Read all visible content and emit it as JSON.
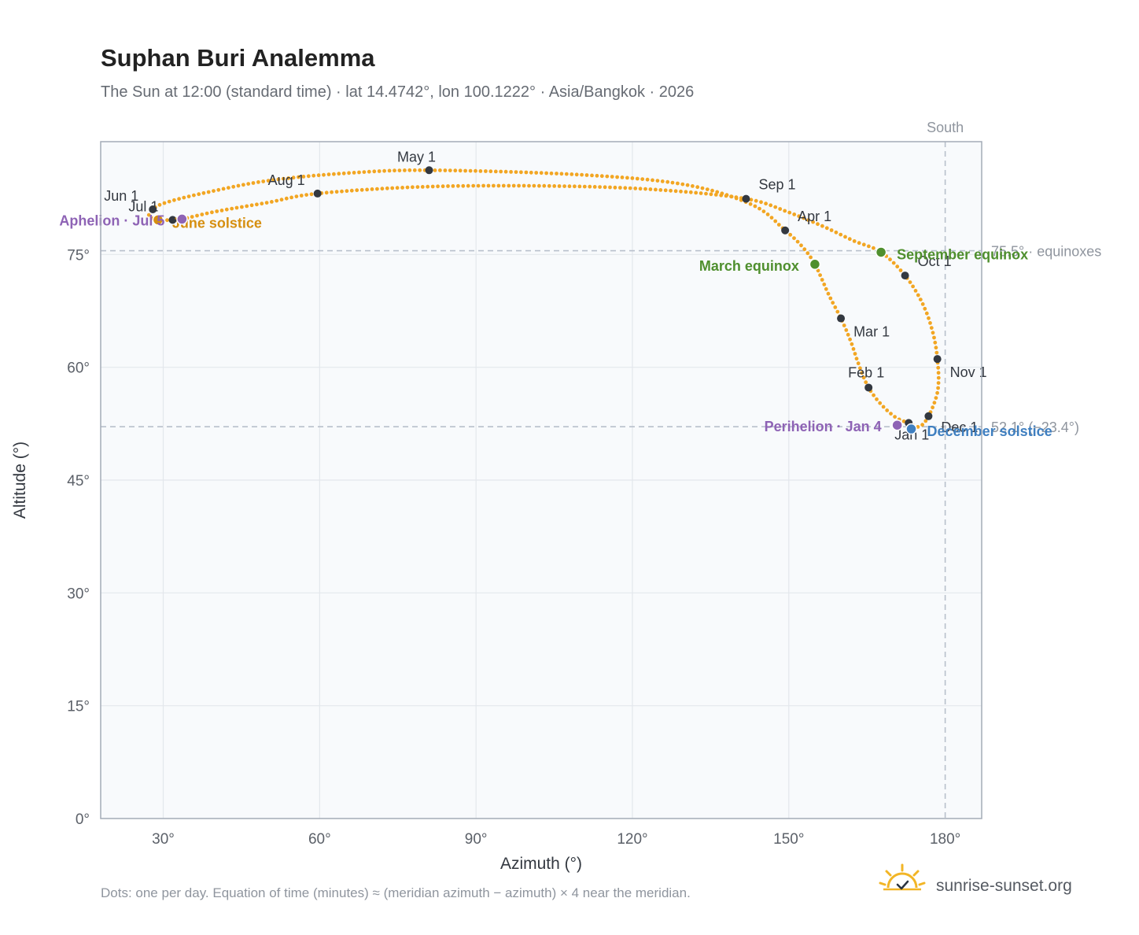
{
  "title": "Suphan Buri Analemma",
  "subtitle": "The Sun at 12:00 (standard time) · lat 14.4742°, lon 100.1222° · Asia/Bangkok · 2026",
  "footnote": "Dots: one per day. Equation of time (minutes) ≈ (meridian azimuth − azimuth) × 4 near the meridian.",
  "brand": {
    "name": "sunrise-sunset.org",
    "icon": "sun-logo-icon"
  },
  "colors": {
    "curve": "#f2a623",
    "month_dot": "#333840",
    "equinox": "#4f8f2e",
    "december_solstice": "#3f7fc0",
    "june_solstice": "#d68f10",
    "apsis": "#8e63b5",
    "plot_bg": "#f8fafc",
    "grid": "#e3e7ec",
    "reference": "#b8c0cb"
  },
  "chart_data": {
    "type": "scatter",
    "xlabel": "Azimuth (°)",
    "ylabel": "Altitude (°)",
    "xlim": [
      18,
      187
    ],
    "ylim": [
      0,
      90
    ],
    "x_ticks": [
      30,
      60,
      90,
      120,
      150,
      180
    ],
    "y_ticks": [
      0,
      15,
      30,
      45,
      60,
      75
    ],
    "x_tick_labels": [
      "30°",
      "60°",
      "90°",
      "120°",
      "150°",
      "180°"
    ],
    "y_tick_labels": [
      "0°",
      "15°",
      "30°",
      "45°",
      "60°",
      "75°"
    ],
    "grid": true,
    "meridian": {
      "azimuth": 180,
      "label": "South"
    },
    "reference_lines": [
      {
        "altitude": 75.5,
        "label": "75.5° · equinoxes"
      },
      {
        "altitude": 52.1,
        "label": "52.1° (−23.4°)"
      }
    ],
    "month_markers": [
      {
        "label": "Jan 1",
        "azimuth": 173.0,
        "altitude": 52.6
      },
      {
        "label": "Feb 1",
        "azimuth": 165.3,
        "altitude": 57.3
      },
      {
        "label": "Mar 1",
        "azimuth": 160.0,
        "altitude": 66.5
      },
      {
        "label": "Apr 1",
        "azimuth": 149.3,
        "altitude": 78.2
      },
      {
        "label": "May 1",
        "azimuth": 81.0,
        "altitude": 86.2
      },
      {
        "label": "Jun 1",
        "azimuth": 28.0,
        "altitude": 81.0
      },
      {
        "label": "Jul 1",
        "azimuth": 31.8,
        "altitude": 79.6
      },
      {
        "label": "Aug 1",
        "azimuth": 59.6,
        "altitude": 83.1
      },
      {
        "label": "Sep 1",
        "azimuth": 141.8,
        "altitude": 82.4
      },
      {
        "label": "Oct 1",
        "azimuth": 172.3,
        "altitude": 72.2
      },
      {
        "label": "Nov 1",
        "azimuth": 178.5,
        "altitude": 61.1
      },
      {
        "label": "Dec 1",
        "azimuth": 176.8,
        "altitude": 53.5
      }
    ],
    "events": [
      {
        "label": "March equinox",
        "azimuth": 155.0,
        "altitude": 73.7,
        "kind": "equinox"
      },
      {
        "label": "June solstice",
        "azimuth": 29.0,
        "altitude": 79.6,
        "kind": "june_solstice"
      },
      {
        "label": "September equinox",
        "azimuth": 167.7,
        "altitude": 75.3,
        "kind": "equinox"
      },
      {
        "label": "December solstice",
        "azimuth": 173.5,
        "altitude": 51.8,
        "kind": "december_solstice"
      },
      {
        "label": "Perihelion · Jan 4",
        "azimuth": 170.8,
        "altitude": 52.3,
        "kind": "apsis"
      },
      {
        "label": "Aphelion · Jul 5",
        "azimuth": 33.6,
        "altitude": 79.7,
        "kind": "apsis"
      }
    ],
    "path": [
      [
        173.0,
        52.6
      ],
      [
        170.6,
        53.3
      ],
      [
        167.8,
        55.0
      ],
      [
        165.3,
        57.3
      ],
      [
        163.5,
        60.2
      ],
      [
        161.8,
        63.6
      ],
      [
        160.0,
        66.5
      ],
      [
        157.7,
        69.6
      ],
      [
        155.0,
        73.7
      ],
      [
        152.5,
        76.1
      ],
      [
        149.3,
        78.2
      ],
      [
        143.0,
        81.6
      ],
      [
        130.0,
        84.3
      ],
      [
        110.0,
        85.6
      ],
      [
        81.0,
        86.2
      ],
      [
        65.0,
        85.8
      ],
      [
        50.0,
        84.8
      ],
      [
        38.0,
        83.2
      ],
      [
        30.5,
        81.9
      ],
      [
        28.0,
        81.0
      ],
      [
        27.3,
        80.1
      ],
      [
        29.0,
        79.6
      ],
      [
        31.8,
        79.6
      ],
      [
        33.6,
        79.7
      ],
      [
        40.0,
        80.7
      ],
      [
        50.0,
        81.9
      ],
      [
        59.6,
        83.1
      ],
      [
        80.0,
        84.0
      ],
      [
        105.0,
        84.1
      ],
      [
        125.0,
        83.6
      ],
      [
        141.8,
        82.4
      ],
      [
        150.0,
        80.6
      ],
      [
        157.0,
        78.6
      ],
      [
        162.5,
        76.8
      ],
      [
        167.7,
        75.3
      ],
      [
        172.3,
        72.2
      ],
      [
        175.5,
        68.7
      ],
      [
        177.5,
        65.0
      ],
      [
        178.5,
        61.1
      ],
      [
        178.6,
        57.0
      ],
      [
        176.8,
        53.5
      ],
      [
        175.0,
        52.1
      ],
      [
        173.0,
        52.6
      ]
    ]
  }
}
